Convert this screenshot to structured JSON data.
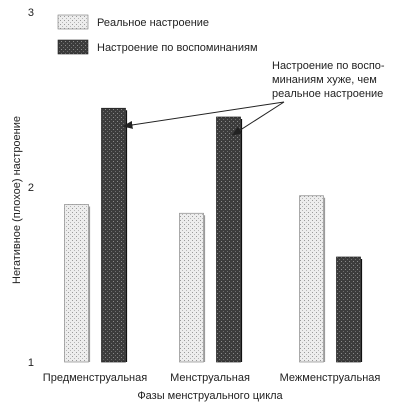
{
  "chart_data": {
    "type": "bar",
    "title": "",
    "xlabel": "Фазы менструального цикла",
    "ylabel": "Негативное (плохое) настроение",
    "categories": [
      "Предменструальная",
      "Менструальная",
      "Межменструальная"
    ],
    "series": [
      {
        "name": "Реальное настроение",
        "values": [
          1.9,
          1.85,
          1.95
        ],
        "color": "#e4e4e4",
        "pattern": "light-stipple"
      },
      {
        "name": "Настроение по воспоминаниям",
        "values": [
          2.45,
          2.4,
          1.6
        ],
        "color": "#4a4a4a",
        "pattern": "dark-stipple"
      }
    ],
    "ylim": [
      1,
      3
    ],
    "yticks": [
      "1",
      "2",
      "3"
    ],
    "grid": false,
    "legend": "top-left",
    "annotation": {
      "lines": [
        "Настроение по воспо-",
        "минаниям хуже, чем",
        "реальное настроение"
      ],
      "arrow_targets": [
        "Предменструальная",
        "Менструальная"
      ]
    }
  }
}
